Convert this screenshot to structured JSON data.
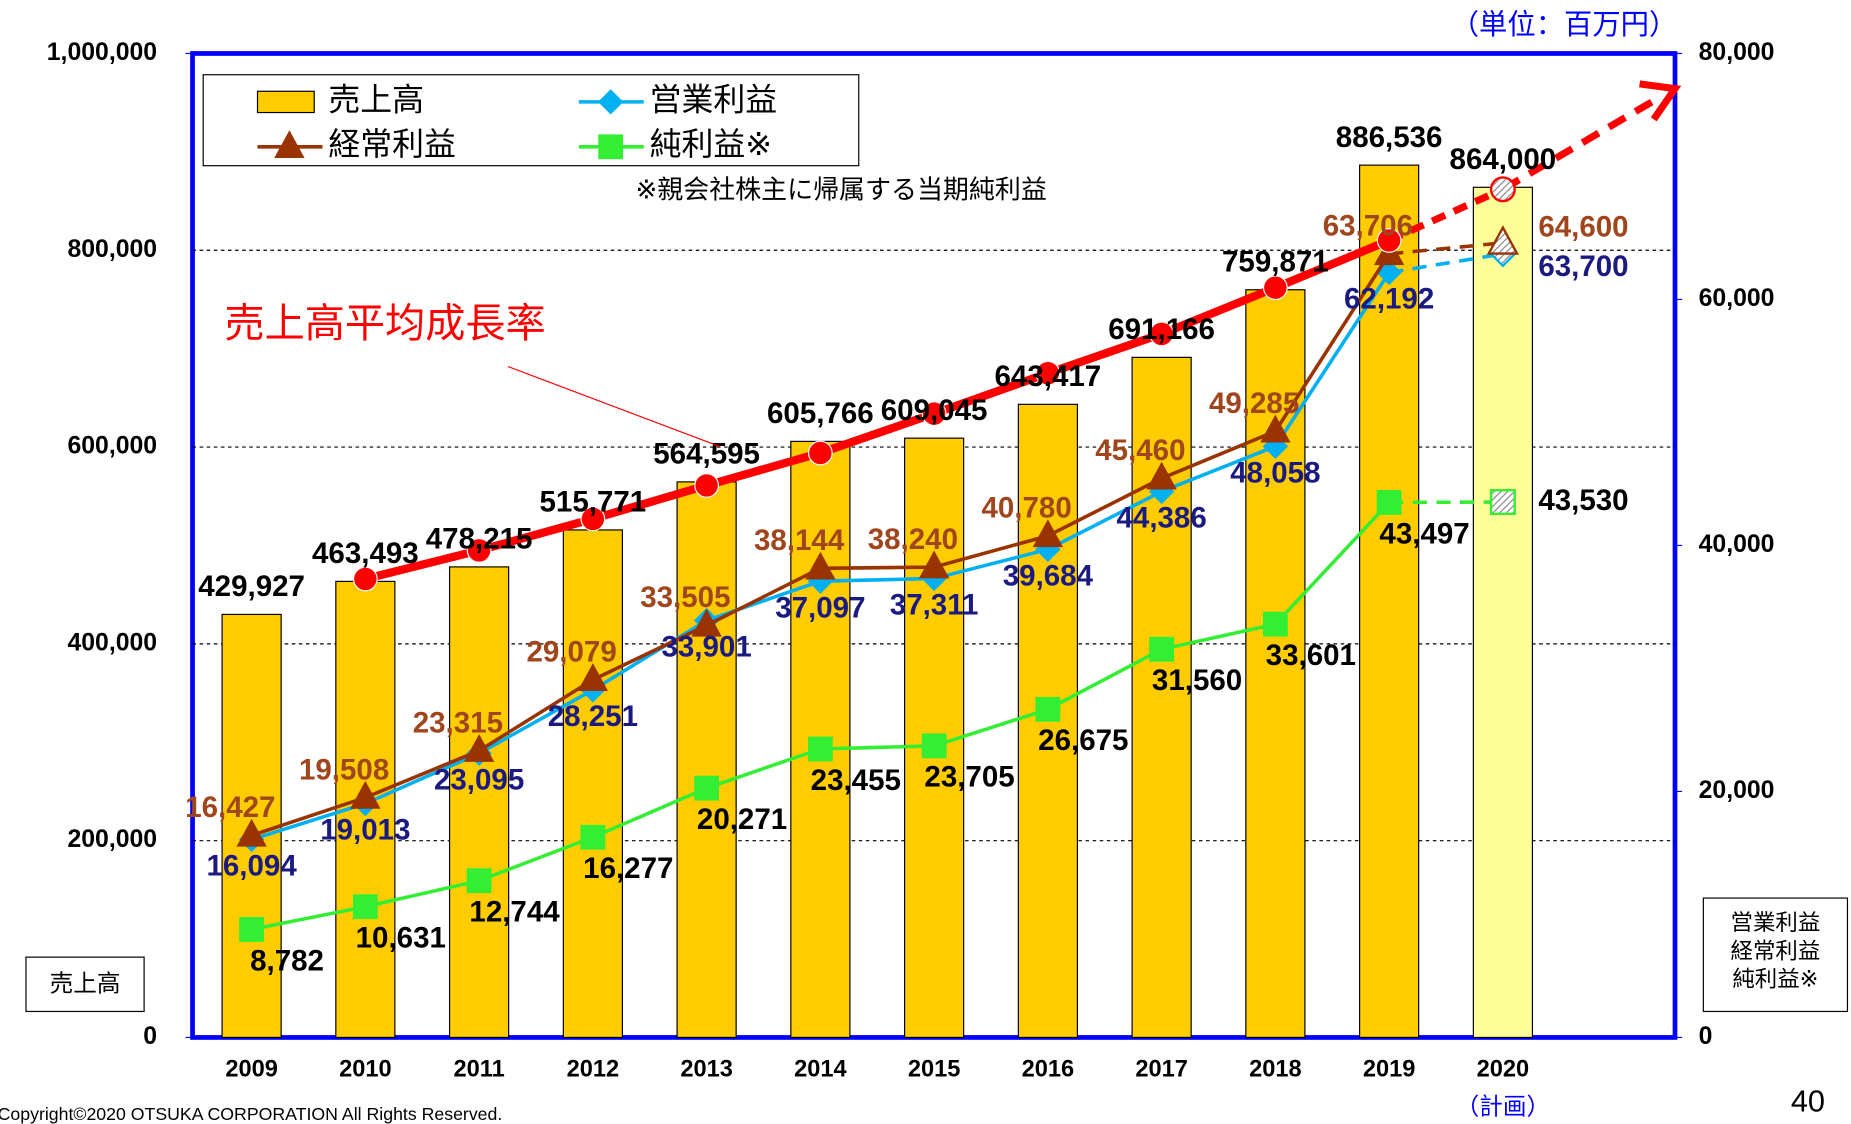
{
  "chart_data": {
    "type": "combo",
    "unit_note": "（単位：百万円）",
    "footnote": "※親会社株主に帰属する当期純利益",
    "y_axis_label": "売上高",
    "y2_axis_label": [
      "営業利益",
      "経常利益",
      "純利益※"
    ],
    "categories": [
      "2009",
      "2010",
      "2011",
      "2012",
      "2013",
      "2014",
      "2015",
      "2016",
      "2017",
      "2018",
      "2019",
      "2020"
    ],
    "category_notes": [
      null,
      null,
      null,
      null,
      null,
      null,
      null,
      null,
      null,
      null,
      null,
      "（計画）"
    ],
    "ylim": [
      0,
      1000000
    ],
    "yticks": [
      0,
      {
        "value": 200000,
        "label": "200,000"
      },
      {
        "value": 400000,
        "label": "400,000"
      },
      {
        "value": 600000,
        "label": "600,000"
      },
      {
        "value": 800000,
        "label": "800,000"
      },
      {
        "value": 1000000,
        "label": "1,000,000"
      }
    ],
    "y2lim": [
      0,
      80000
    ],
    "y2ticks": [
      0,
      {
        "value": 20000,
        "label": "20,000"
      },
      {
        "value": 40000,
        "label": "40,000"
      },
      {
        "value": 60000,
        "label": "60,000"
      },
      {
        "value": 80000,
        "label": "80,000"
      }
    ],
    "grid": true,
    "series": [
      {
        "name": "売上高",
        "type": "bar",
        "color": "#ffcc00",
        "planned_color": "#ffff99",
        "values": [
          429927,
          463493,
          478215,
          515771,
          564595,
          605766,
          609045,
          643417,
          691166,
          759871,
          886536,
          864000
        ],
        "value_labels": [
          "429,927",
          "463,493",
          "478,215",
          "515,771",
          "564,595",
          "605,766",
          "609,045",
          "643,417",
          "691,166",
          "759,871",
          "886,536",
          "864,000"
        ],
        "label_color": "#000000"
      },
      {
        "name": "営業利益",
        "type": "line",
        "axis": "y2",
        "marker": "diamond",
        "color": "#00b0f0",
        "values": [
          16094,
          19013,
          23095,
          28251,
          33901,
          37097,
          37311,
          39684,
          44386,
          48058,
          62192,
          63700
        ],
        "value_labels": [
          "16,094",
          "19,013",
          "23,095",
          "28,251",
          "33,901",
          "37,097",
          "37,311",
          "39,684",
          "44,386",
          "48,058",
          "62,192",
          "63,700"
        ],
        "label_color": "#1a1a80"
      },
      {
        "name": "経常利益",
        "type": "line",
        "axis": "y2",
        "marker": "triangle",
        "color": "#993300",
        "values": [
          16427,
          19508,
          23315,
          29079,
          33505,
          38144,
          38240,
          40780,
          45460,
          49285,
          63706,
          64600
        ],
        "value_labels": [
          "16,427",
          "19,508",
          "23,315",
          "29,079",
          "33,505",
          "38,144",
          "38,240",
          "40,780",
          "45,460",
          "49,285",
          "63,706",
          "64,600"
        ],
        "label_color": "#a0461e"
      },
      {
        "name": "純利益※",
        "type": "line",
        "axis": "y2",
        "marker": "square",
        "color": "#33ee33",
        "values": [
          8782,
          10631,
          12744,
          16277,
          20271,
          23455,
          23705,
          26675,
          31560,
          33601,
          43497,
          43530
        ],
        "value_labels": [
          "8,782",
          "10,631",
          "12,744",
          "16,277",
          "20,271",
          "23,455",
          "23,705",
          "26,675",
          "31,560",
          "33,601",
          "43,497",
          "43,530"
        ],
        "label_color": "#000000"
      },
      {
        "name": "売上高平均成長率",
        "type": "line",
        "marker": "circle",
        "color": "#ff0000",
        "values": [
          null,
          466000,
          495000,
          527000,
          561000,
          594000,
          634000,
          675000,
          715000,
          762000,
          810000,
          862000
        ]
      }
    ]
  },
  "copyright": "Copyright©2020 OTSUKA CORPORATION All Rights Reserved.",
  "page_number": "40"
}
